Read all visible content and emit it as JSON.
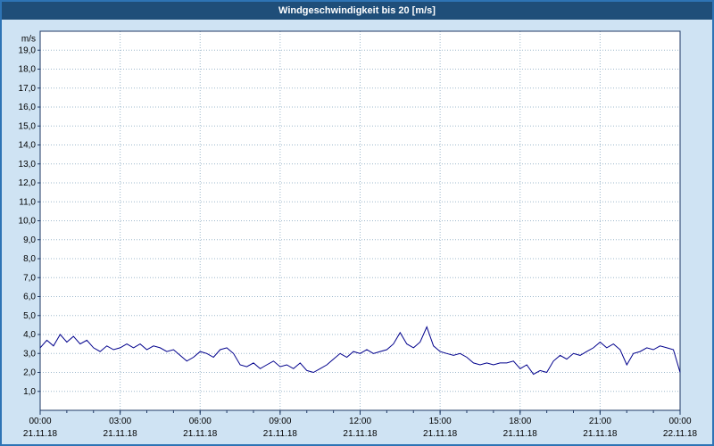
{
  "header": {
    "title": "Windgeschwindigkeit bis 20 [m/s]"
  },
  "colors": {
    "outer_border": "#2e74b5",
    "page_bg": "#cfe3f3",
    "header_bg": "#1f4e79",
    "header_text": "#ffffff",
    "plot_bg": "#ffffff",
    "grid": "#9db8cc",
    "axis": "#1f3864",
    "series": "#00008c",
    "tick_text": "#000000"
  },
  "chart_data": {
    "type": "line",
    "title": "Windgeschwindigkeit bis 20 [m/s]",
    "xlabel": "",
    "ylabel": "m/s",
    "ylim": [
      0,
      20
    ],
    "grid": true,
    "legend_position": "none",
    "y_ticks": [
      {
        "v": 1,
        "label": "1,0"
      },
      {
        "v": 2,
        "label": "2,0"
      },
      {
        "v": 3,
        "label": "3,0"
      },
      {
        "v": 4,
        "label": "4,0"
      },
      {
        "v": 5,
        "label": "5,0"
      },
      {
        "v": 6,
        "label": "6,0"
      },
      {
        "v": 7,
        "label": "7,0"
      },
      {
        "v": 8,
        "label": "8,0"
      },
      {
        "v": 9,
        "label": "9,0"
      },
      {
        "v": 10,
        "label": "10,0"
      },
      {
        "v": 11,
        "label": "11,0"
      },
      {
        "v": 12,
        "label": "12,0"
      },
      {
        "v": 13,
        "label": "13,0"
      },
      {
        "v": 14,
        "label": "14,0"
      },
      {
        "v": 15,
        "label": "15,0"
      },
      {
        "v": 16,
        "label": "16,0"
      },
      {
        "v": 17,
        "label": "17,0"
      },
      {
        "v": 18,
        "label": "18,0"
      },
      {
        "v": 19,
        "label": "19,0"
      }
    ],
    "x_ticks": [
      {
        "hour": 0,
        "time": "00:00",
        "date": "21.11.18"
      },
      {
        "hour": 3,
        "time": "03:00",
        "date": "21.11.18"
      },
      {
        "hour": 6,
        "time": "06:00",
        "date": "21.11.18"
      },
      {
        "hour": 9,
        "time": "09:00",
        "date": "21.11.18"
      },
      {
        "hour": 12,
        "time": "12:00",
        "date": "21.11.18"
      },
      {
        "hour": 15,
        "time": "15:00",
        "date": "21.11.18"
      },
      {
        "hour": 18,
        "time": "18:00",
        "date": "21.11.18"
      },
      {
        "hour": 21,
        "time": "21:00",
        "date": "21.11.18"
      },
      {
        "hour": 24,
        "time": "00:00",
        "date": "22.11.18"
      }
    ],
    "series": [
      {
        "name": "Windgeschwindigkeit",
        "color": "#00008c",
        "x_start_hour": 0,
        "x_step_hours": 0.25,
        "values": [
          3.3,
          3.7,
          3.4,
          4.0,
          3.6,
          3.9,
          3.5,
          3.7,
          3.3,
          3.1,
          3.4,
          3.2,
          3.3,
          3.5,
          3.3,
          3.5,
          3.2,
          3.4,
          3.3,
          3.1,
          3.2,
          2.9,
          2.6,
          2.8,
          3.1,
          3.0,
          2.8,
          3.2,
          3.3,
          3.0,
          2.4,
          2.3,
          2.5,
          2.2,
          2.4,
          2.6,
          2.3,
          2.4,
          2.2,
          2.5,
          2.1,
          2.0,
          2.2,
          2.4,
          2.7,
          3.0,
          2.8,
          3.1,
          3.0,
          3.2,
          3.0,
          3.1,
          3.2,
          3.5,
          4.1,
          3.5,
          3.3,
          3.6,
          4.4,
          3.4,
          3.1,
          3.0,
          2.9,
          3.0,
          2.8,
          2.5,
          2.4,
          2.5,
          2.4,
          2.5,
          2.5,
          2.6,
          2.2,
          2.4,
          1.9,
          2.1,
          2.0,
          2.6,
          2.9,
          2.7,
          3.0,
          2.9,
          3.1,
          3.3,
          3.6,
          3.3,
          3.5,
          3.2,
          2.4,
          3.0,
          3.1,
          3.3,
          3.2,
          3.4,
          3.3,
          3.2,
          2.0
        ]
      }
    ]
  }
}
